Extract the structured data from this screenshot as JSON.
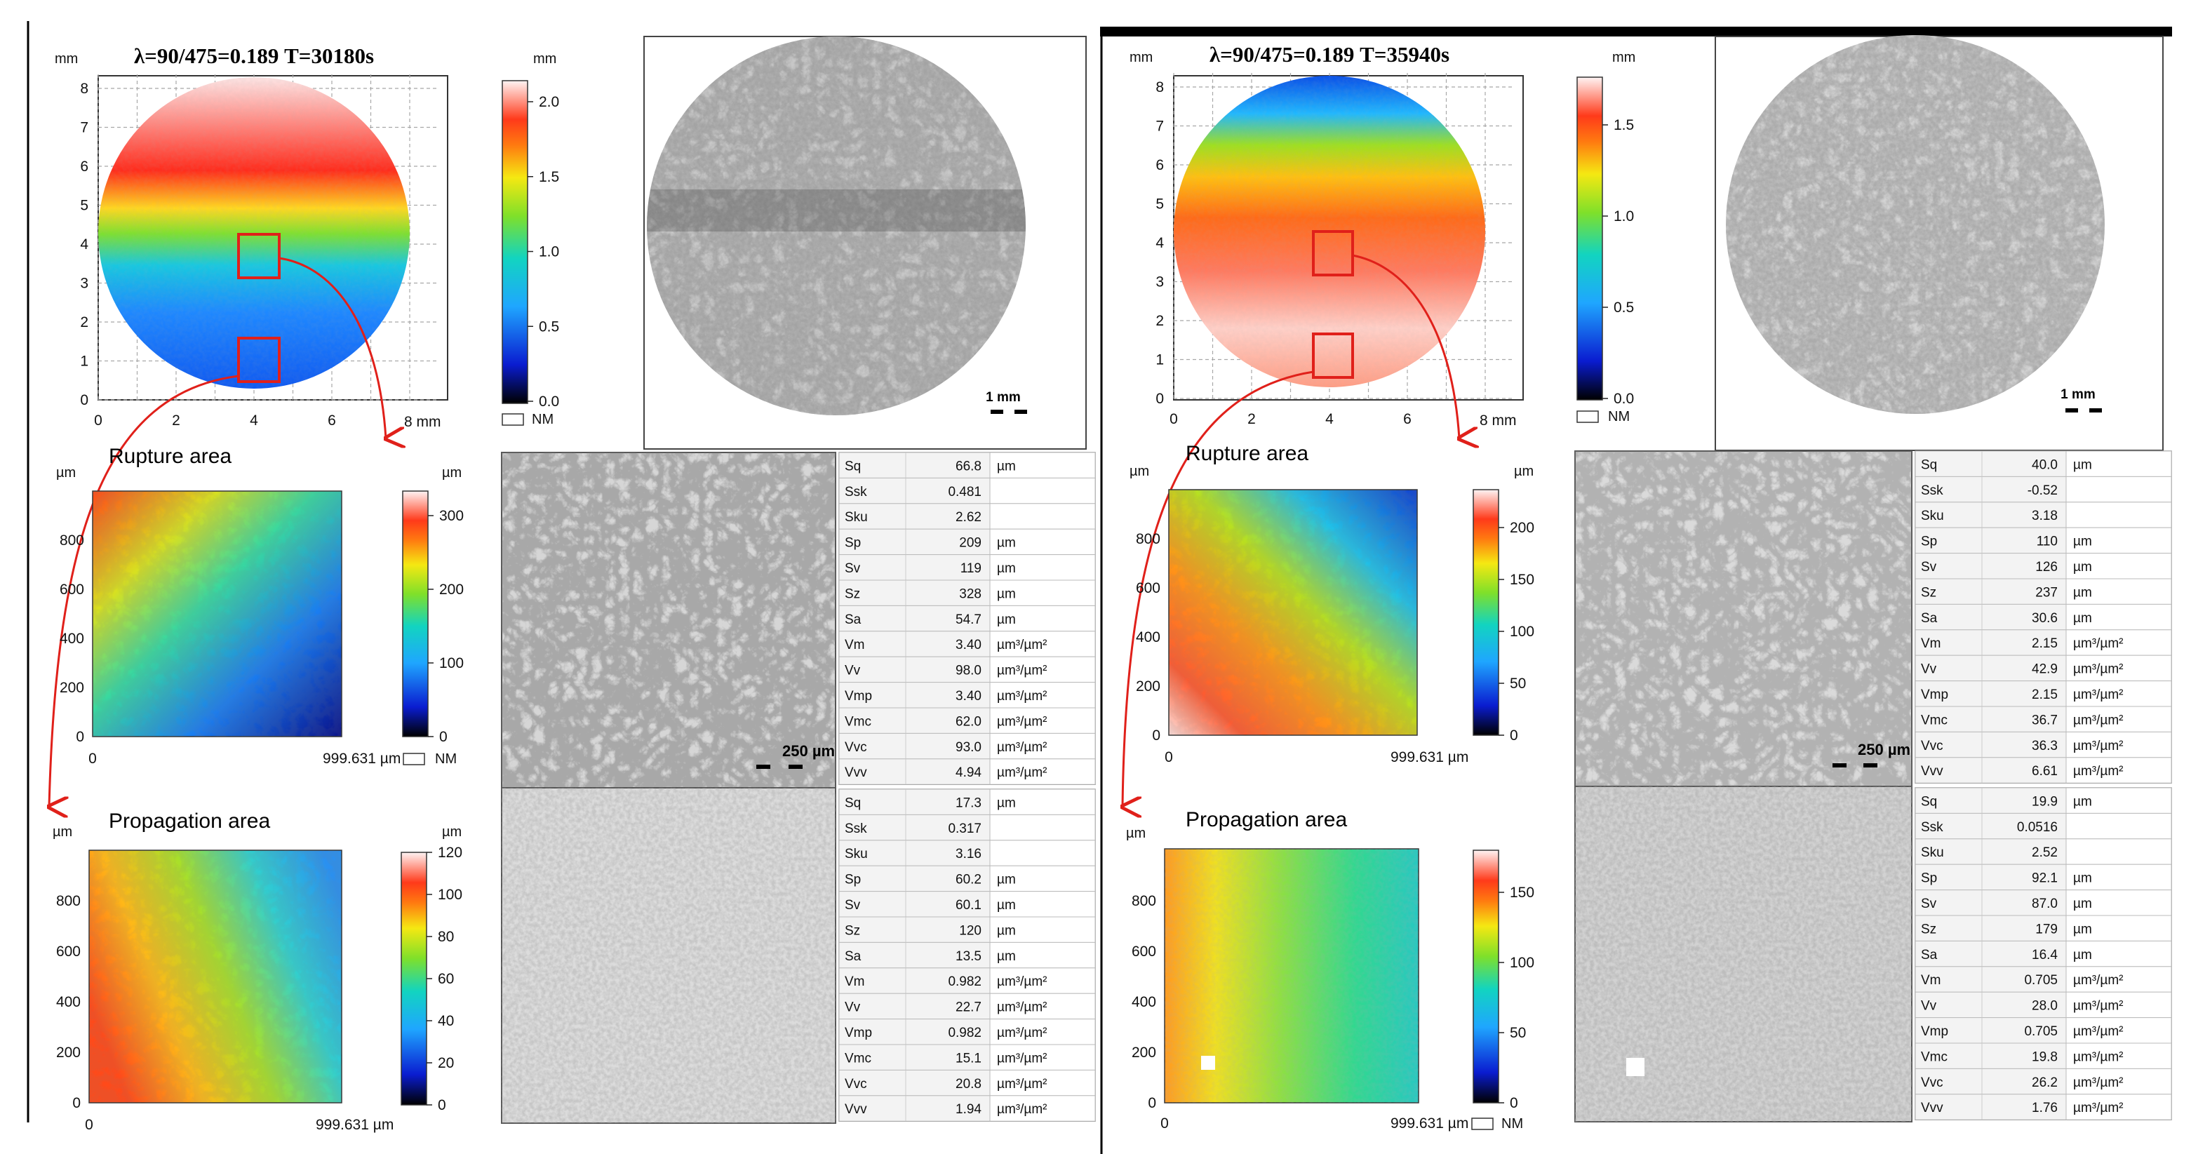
{
  "colors": {
    "accent": "#e0201a",
    "grid": "#9a9a9a"
  },
  "unit_mm": "mm",
  "unit_um": "µm",
  "tick_labels": {
    "mm_axis": [
      "0",
      "1",
      "2",
      "3",
      "4",
      "5",
      "6",
      "7",
      "8"
    ],
    "mm_x": [
      "0",
      "2",
      "4",
      "6"
    ],
    "mm_x_end": "8 mm",
    "um_y": [
      "0",
      "200",
      "400",
      "600",
      "800"
    ],
    "um_x0": "0",
    "um_x_end": "999.631 µm",
    "left_mm_cbar": [
      "0.0",
      "0.5",
      "1.0",
      "1.5",
      "2.0"
    ],
    "right_mm_cbar": [
      "0.0",
      "0.5",
      "1.0",
      "1.5"
    ],
    "left_rupture_cbar": [
      "0",
      "100",
      "200",
      "300"
    ],
    "right_rupture_cbar": [
      "0",
      "50",
      "100",
      "150",
      "200"
    ],
    "left_prop_cbar": [
      "0",
      "20",
      "40",
      "60",
      "80",
      "100",
      "120"
    ],
    "right_prop_cbar": [
      "0",
      "50",
      "100",
      "150"
    ],
    "nm": "NM"
  },
  "titles": {
    "rupture": "Rupture area",
    "propagation": "Propagation area"
  },
  "scales": {
    "mm": "1 mm",
    "um": "250 µm"
  },
  "left": {
    "title": "λ=90/475=0.189  T=30180s",
    "rupture_params": [
      [
        "Sq",
        "66.8",
        "µm"
      ],
      [
        "Ssk",
        "0.481",
        ""
      ],
      [
        "Sku",
        "2.62",
        ""
      ],
      [
        "Sp",
        "209",
        "µm"
      ],
      [
        "Sv",
        "119",
        "µm"
      ],
      [
        "Sz",
        "328",
        "µm"
      ],
      [
        "Sa",
        "54.7",
        "µm"
      ],
      [
        "Vm",
        "3.40",
        "µm³/µm²"
      ],
      [
        "Vv",
        "98.0",
        "µm³/µm²"
      ],
      [
        "Vmp",
        "3.40",
        "µm³/µm²"
      ],
      [
        "Vmc",
        "62.0",
        "µm³/µm²"
      ],
      [
        "Vvc",
        "93.0",
        "µm³/µm²"
      ],
      [
        "Vvv",
        "4.94",
        "µm³/µm²"
      ]
    ],
    "propagation_params": [
      [
        "Sq",
        "17.3",
        "µm"
      ],
      [
        "Ssk",
        "0.317",
        ""
      ],
      [
        "Sku",
        "3.16",
        ""
      ],
      [
        "Sp",
        "60.2",
        "µm"
      ],
      [
        "Sv",
        "60.1",
        "µm"
      ],
      [
        "Sz",
        "120",
        "µm"
      ],
      [
        "Sa",
        "13.5",
        "µm"
      ],
      [
        "Vm",
        "0.982",
        "µm³/µm²"
      ],
      [
        "Vv",
        "22.7",
        "µm³/µm²"
      ],
      [
        "Vmp",
        "0.982",
        "µm³/µm²"
      ],
      [
        "Vmc",
        "15.1",
        "µm³/µm²"
      ],
      [
        "Vvc",
        "20.8",
        "µm³/µm²"
      ],
      [
        "Vvv",
        "1.94",
        "µm³/µm²"
      ]
    ]
  },
  "right": {
    "title": "λ=90/475=0.189  T=35940s",
    "rupture_params": [
      [
        "Sq",
        "40.0",
        "µm"
      ],
      [
        "Ssk",
        "-0.52",
        ""
      ],
      [
        "Sku",
        "3.18",
        ""
      ],
      [
        "Sp",
        "110",
        "µm"
      ],
      [
        "Sv",
        "126",
        "µm"
      ],
      [
        "Sz",
        "237",
        "µm"
      ],
      [
        "Sa",
        "30.6",
        "µm"
      ],
      [
        "Vm",
        "2.15",
        "µm³/µm²"
      ],
      [
        "Vv",
        "42.9",
        "µm³/µm²"
      ],
      [
        "Vmp",
        "2.15",
        "µm³/µm²"
      ],
      [
        "Vmc",
        "36.7",
        "µm³/µm²"
      ],
      [
        "Vvc",
        "36.3",
        "µm³/µm²"
      ],
      [
        "Vvv",
        "6.61",
        "µm³/µm²"
      ]
    ],
    "propagation_params": [
      [
        "Sq",
        "19.9",
        "µm"
      ],
      [
        "Ssk",
        "0.0516",
        ""
      ],
      [
        "Sku",
        "2.52",
        ""
      ],
      [
        "Sp",
        "92.1",
        "µm"
      ],
      [
        "Sv",
        "87.0",
        "µm"
      ],
      [
        "Sz",
        "179",
        "µm"
      ],
      [
        "Sa",
        "16.4",
        "µm"
      ],
      [
        "Vm",
        "0.705",
        "µm³/µm²"
      ],
      [
        "Vv",
        "28.0",
        "µm³/µm²"
      ],
      [
        "Vmp",
        "0.705",
        "µm³/µm²"
      ],
      [
        "Vmc",
        "19.8",
        "µm³/µm²"
      ],
      [
        "Vvc",
        "26.2",
        "µm³/µm²"
      ],
      [
        "Vvv",
        "1.76",
        "µm³/µm²"
      ]
    ]
  }
}
